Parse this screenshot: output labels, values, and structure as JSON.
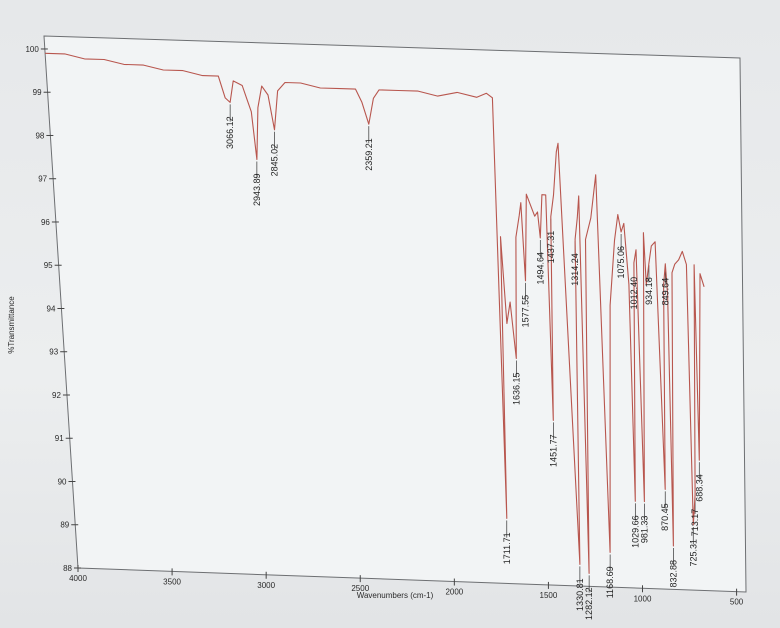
{
  "chart_data": {
    "type": "line",
    "xlabel": "Wavenumbers (cm-1)",
    "ylabel": "%Transmittance",
    "xlim": [
      4000,
      450
    ],
    "ylim": [
      88,
      100.3
    ],
    "x_ticks": [
      "4000",
      "3500",
      "3000",
      "2500",
      "2000",
      "1500",
      "1000",
      "500"
    ],
    "y_ticks": [
      "88",
      "89",
      "90",
      "91",
      "92",
      "93",
      "94",
      "95",
      "96",
      "97",
      "98",
      "99",
      "100"
    ],
    "grid": false,
    "line_color": "#b8564e",
    "x": [
      4000,
      3900,
      3800,
      3700,
      3600,
      3500,
      3400,
      3300,
      3200,
      3120,
      3090,
      3066,
      3045,
      3000,
      2980,
      2960,
      2943,
      2925,
      2900,
      2870,
      2845,
      2820,
      2780,
      2700,
      2600,
      2500,
      2420,
      2390,
      2359,
      2330,
      2300,
      2200,
      2100,
      2000,
      1900,
      1800,
      1750,
      1720,
      1711,
      1700,
      1680,
      1660,
      1636,
      1620,
      1600,
      1590,
      1577,
      1560,
      1520,
      1505,
      1494,
      1480,
      1460,
      1451,
      1437,
      1420,
      1400,
      1390,
      1330,
      1314,
      1300,
      1290,
      1282,
      1260,
      1230,
      1200,
      1168,
      1140,
      1110,
      1090,
      1075,
      1060,
      1040,
      1029,
      1012,
      1000,
      981,
      960,
      950,
      934,
      920,
      900,
      870,
      860,
      849,
      840,
      832,
      815,
      800,
      780,
      760,
      740,
      725,
      713,
      700,
      688,
      670,
      650
    ],
    "y": [
      99.9,
      99.9,
      99.8,
      99.8,
      99.7,
      99.7,
      99.6,
      99.6,
      99.5,
      99.5,
      99.0,
      98.9,
      99.4,
      99.3,
      99.0,
      98.7,
      97.6,
      98.8,
      99.3,
      99.1,
      98.3,
      99.2,
      99.4,
      99.4,
      99.3,
      99.3,
      99.3,
      99.0,
      98.5,
      99.1,
      99.3,
      99.3,
      99.3,
      99.2,
      99.3,
      99.2,
      99.3,
      99.2,
      89.5,
      96.0,
      94.0,
      94.5,
      93.2,
      96.0,
      96.5,
      96.8,
      95.0,
      97.0,
      96.5,
      96.6,
      96.0,
      97.0,
      97.0,
      91.8,
      96.5,
      97.0,
      98.0,
      98.2,
      88.5,
      96.0,
      96.5,
      97.0,
      88.3,
      96.0,
      96.5,
      97.5,
      88.8,
      94.5,
      96.0,
      96.6,
      96.2,
      96.4,
      95.0,
      90.0,
      95.5,
      95.8,
      90.0,
      96.2,
      95.0,
      95.5,
      95.9,
      96.0,
      90.3,
      95.0,
      95.5,
      94.8,
      89.0,
      95.3,
      95.5,
      95.6,
      95.8,
      95.5,
      89.5,
      90.2,
      95.5,
      91.0,
      95.3,
      95.0
    ],
    "annotations": [
      {
        "text": "3066.12",
        "x": 3066
      },
      {
        "text": "2943.89",
        "x": 2943
      },
      {
        "text": "2845.02",
        "x": 2845
      },
      {
        "text": "2359.21",
        "x": 2359
      },
      {
        "text": "1711.71",
        "x": 1711
      },
      {
        "text": "1636.15",
        "x": 1636
      },
      {
        "text": "1577.55",
        "x": 1577
      },
      {
        "text": "1494.64",
        "x": 1494
      },
      {
        "text": "1451.77",
        "x": 1451
      },
      {
        "text": "1437.31",
        "x": 1437
      },
      {
        "text": "1330.81",
        "x": 1330
      },
      {
        "text": "1314.24",
        "x": 1314
      },
      {
        "text": "1282.12",
        "x": 1282
      },
      {
        "text": "1168.69",
        "x": 1168
      },
      {
        "text": "1075.06",
        "x": 1075
      },
      {
        "text": "1029.66",
        "x": 1029
      },
      {
        "text": "1012.40",
        "x": 1012
      },
      {
        "text": "981.33",
        "x": 981
      },
      {
        "text": "934.18",
        "x": 934
      },
      {
        "text": "870.45",
        "x": 870
      },
      {
        "text": "849.64",
        "x": 849
      },
      {
        "text": "832.88",
        "x": 832
      },
      {
        "text": "725.31",
        "x": 725
      },
      {
        "text": "713.17",
        "x": 713
      },
      {
        "text": "688.34",
        "x": 688
      }
    ]
  }
}
